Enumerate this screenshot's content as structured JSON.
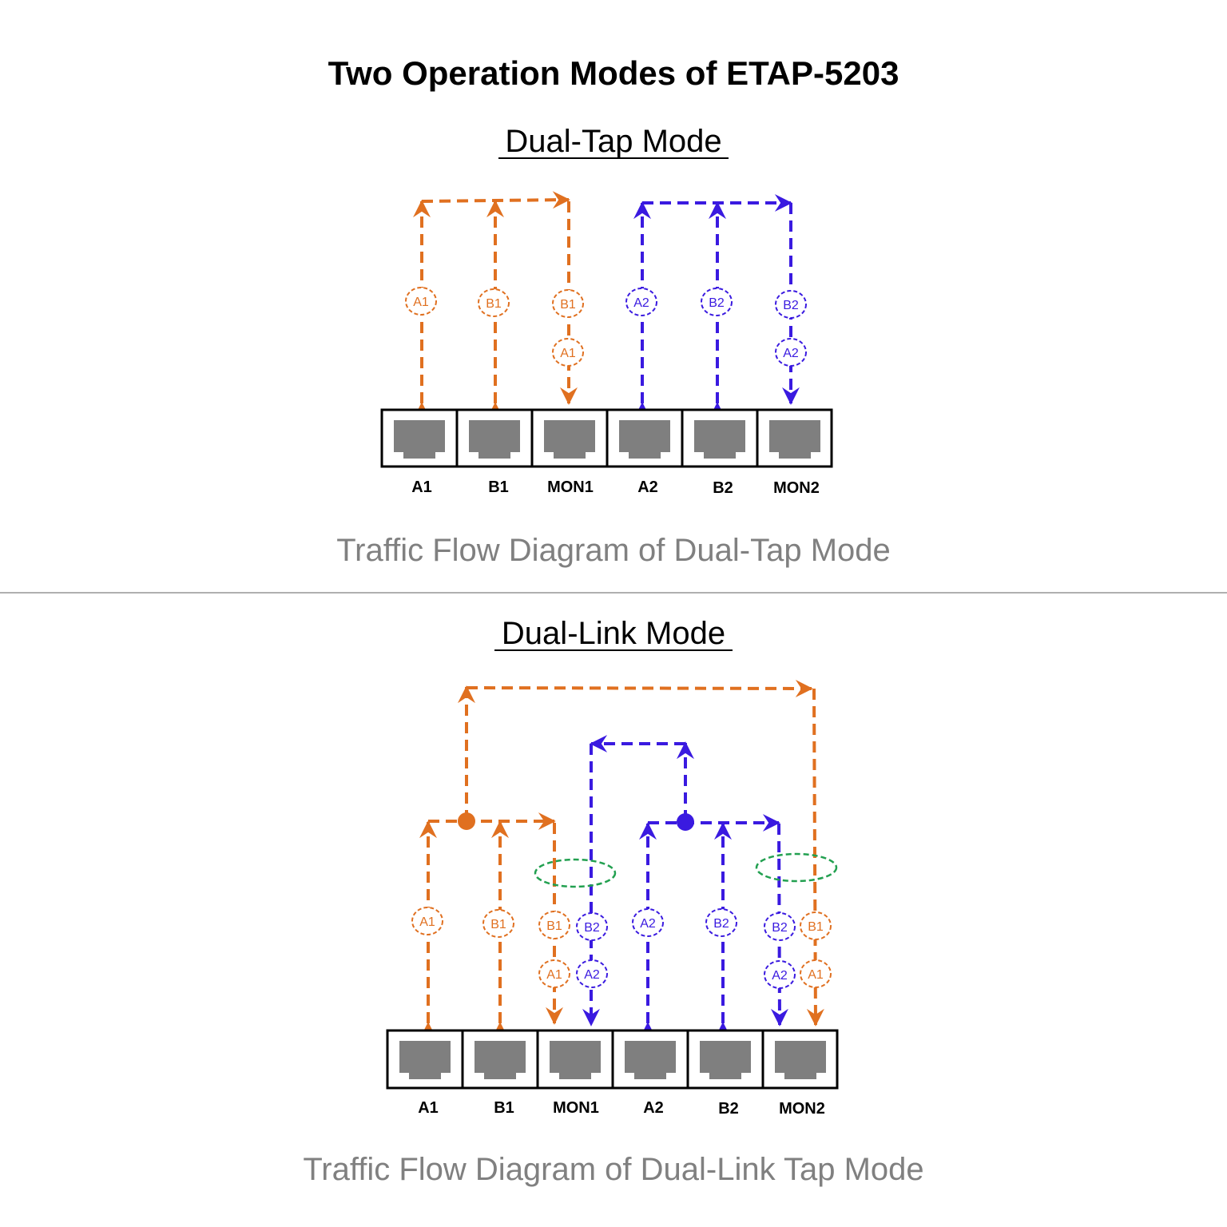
{
  "title": "Two Operation Modes of ETAP-5203",
  "colors": {
    "link1": "#e07020",
    "link2": "#3a1ae0",
    "bundle": "#22a050",
    "port_fill": "#7f7f7f",
    "caption": "#808080",
    "divider": "#b0b0b0"
  },
  "dual_tap": {
    "heading": "Dual-Tap Mode",
    "caption": "Traffic Flow Diagram of Dual-Tap Mode",
    "ports": [
      "A1",
      "B1",
      "MON1",
      "A2",
      "B2",
      "MON2"
    ],
    "badges": {
      "a1": "A1",
      "b1": "B1",
      "mon1_top": "B1",
      "mon1_bottom": "A1",
      "a2": "A2",
      "b2": "B2",
      "mon2_top": "B2",
      "mon2_bottom": "A2"
    }
  },
  "dual_link": {
    "heading": "Dual-Link Mode",
    "caption": "Traffic Flow Diagram of Dual-Link Tap Mode",
    "ports": [
      "A1",
      "B1",
      "MON1",
      "A2",
      "B2",
      "MON2"
    ],
    "badges": {
      "a1": "A1",
      "b1": "B1",
      "mon1_l_top": "B1",
      "mon1_l_bottom": "A1",
      "mon1_r_top": "B2",
      "mon1_r_bottom": "A2",
      "a2": "A2",
      "b2": "B2",
      "mon2_l_top": "B2",
      "mon2_l_bottom": "A2",
      "mon2_r_top": "B1",
      "mon2_r_bottom": "A1"
    }
  }
}
